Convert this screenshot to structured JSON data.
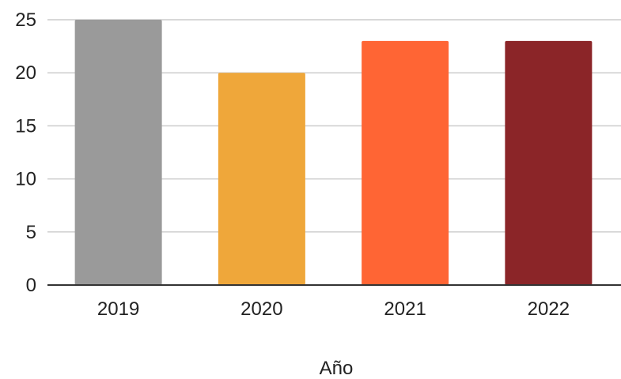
{
  "chart_data": {
    "type": "bar",
    "categories": [
      "2019",
      "2020",
      "2021",
      "2022"
    ],
    "values": [
      25,
      20,
      23,
      23
    ],
    "colors": [
      "#9a9a9a",
      "#efa73a",
      "#ff6534",
      "#8b2528"
    ],
    "title": "",
    "xlabel": "Año",
    "ylabel": "",
    "ylim": [
      0,
      25
    ],
    "yticks": [
      0,
      5,
      10,
      15,
      20,
      25
    ],
    "grid": true,
    "legend": "none"
  }
}
